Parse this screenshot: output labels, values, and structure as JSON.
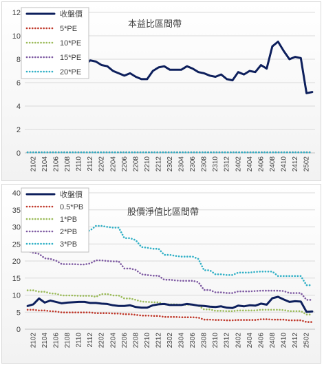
{
  "chart_data": [
    {
      "type": "line",
      "title": "本益比區間帶",
      "ylim": [
        0,
        12
      ],
      "yticks": [
        0,
        2,
        4,
        6,
        8,
        10,
        12
      ],
      "x_tick_labels": [
        "2102",
        "2104",
        "2106",
        "2108",
        "2110",
        "2112",
        "2202",
        "2204",
        "2206",
        "2208",
        "2210",
        "2212",
        "2302",
        "2304",
        "2306",
        "2308",
        "2310",
        "2312",
        "2402",
        "2404",
        "2406",
        "2408",
        "2410",
        "2412",
        "2502"
      ],
      "legend_position": "top-left",
      "x": [
        "2101",
        "2102",
        "2103",
        "2104",
        "2105",
        "2106",
        "2107",
        "2108",
        "2109",
        "2110",
        "2111",
        "2112",
        "2201",
        "2202",
        "2203",
        "2204",
        "2205",
        "2206",
        "2207",
        "2208",
        "2209",
        "2210",
        "2211",
        "2212",
        "2301",
        "2302",
        "2303",
        "2304",
        "2305",
        "2306",
        "2307",
        "2308",
        "2309",
        "2310",
        "2311",
        "2312",
        "2401",
        "2402",
        "2403",
        "2404",
        "2405",
        "2406",
        "2407",
        "2408",
        "2409",
        "2410",
        "2411",
        "2412",
        "2501",
        "2502",
        "2503"
      ],
      "series": [
        {
          "name": "收盤價",
          "color": "#0d1f5c",
          "style": "solid",
          "values": [
            6.8,
            7.3,
            8.1,
            8.3,
            8.6,
            8.7,
            7.9,
            7.9,
            7.8,
            7.5,
            7.5,
            7.9,
            7.8,
            7.5,
            7.4,
            7.0,
            6.8,
            6.6,
            6.8,
            6.5,
            6.3,
            6.3,
            7.0,
            7.3,
            7.4,
            7.1,
            7.1,
            7.1,
            7.4,
            7.2,
            6.9,
            6.8,
            6.6,
            6.5,
            6.7,
            6.3,
            6.2,
            6.9,
            6.7,
            7.0,
            6.9,
            7.5,
            7.2,
            9.1,
            9.5,
            8.7,
            8.0,
            8.2,
            8.1,
            5.1,
            5.2
          ]
        },
        {
          "name": "5*PE",
          "color": "#c0392b",
          "style": "dotted",
          "values": [
            0.05,
            0.05,
            0.05,
            0.05,
            0.05,
            0.05,
            0.05,
            0.05,
            0.05,
            0.05,
            0.05,
            0.05,
            0.05,
            0.05,
            0.05,
            0.05,
            0.05,
            0.05,
            0.05,
            0.05,
            0.05,
            0.05,
            0.05,
            0.05,
            0.05,
            0.05,
            0.05,
            0.05,
            0.05,
            0.05,
            0.05,
            0.05,
            0.05,
            0.05,
            0.05,
            0.05,
            0.05,
            0.05,
            0.05,
            0.05,
            0.05,
            0.05,
            0.05,
            0.05,
            0.05,
            0.05,
            0.05,
            0.05,
            0.05,
            0.05,
            0.05
          ]
        },
        {
          "name": "10*PE",
          "color": "#9bbb59",
          "style": "dotted",
          "values": [
            0.05,
            0.05,
            0.05,
            0.05,
            0.05,
            0.05,
            0.05,
            0.05,
            0.05,
            0.05,
            0.05,
            0.05,
            0.05,
            0.05,
            0.05,
            0.05,
            0.05,
            0.05,
            0.05,
            0.05,
            0.05,
            0.05,
            0.05,
            0.05,
            0.05,
            0.05,
            0.05,
            0.05,
            0.05,
            0.05,
            0.05,
            0.05,
            0.05,
            0.05,
            0.05,
            0.05,
            0.05,
            0.05,
            0.05,
            0.05,
            0.05,
            0.05,
            0.05,
            0.05,
            0.05,
            0.05,
            0.05,
            0.05,
            0.05,
            0.05,
            0.05
          ]
        },
        {
          "name": "15*PE",
          "color": "#7e5aa2",
          "style": "dotted",
          "values": [
            0.05,
            0.05,
            0.05,
            0.05,
            0.05,
            0.05,
            0.05,
            0.05,
            0.05,
            0.05,
            0.05,
            0.05,
            0.05,
            0.05,
            0.05,
            0.05,
            0.05,
            0.05,
            0.05,
            0.05,
            0.05,
            0.05,
            0.05,
            0.05,
            0.05,
            0.05,
            0.05,
            0.05,
            0.05,
            0.05,
            0.05,
            0.05,
            0.05,
            0.05,
            0.05,
            0.05,
            0.05,
            0.05,
            0.05,
            0.05,
            0.05,
            0.05,
            0.05,
            0.05,
            0.05,
            0.05,
            0.05,
            0.05,
            0.05,
            0.05,
            0.05
          ]
        },
        {
          "name": "20*PE",
          "color": "#31b0c6",
          "style": "dotted",
          "values": [
            0.05,
            0.05,
            0.05,
            0.05,
            0.05,
            0.05,
            0.05,
            0.05,
            0.05,
            0.05,
            0.05,
            0.05,
            0.05,
            0.05,
            0.05,
            0.05,
            0.05,
            0.05,
            0.05,
            0.05,
            0.05,
            0.05,
            0.05,
            0.05,
            0.05,
            0.05,
            0.05,
            0.05,
            0.05,
            0.05,
            0.05,
            0.05,
            0.05,
            0.05,
            0.05,
            0.05,
            0.05,
            0.05,
            0.05,
            0.05,
            0.05,
            0.05,
            0.05,
            0.05,
            0.05,
            0.05,
            0.05,
            0.05,
            0.05,
            0.05,
            0.05
          ]
        }
      ]
    },
    {
      "type": "line",
      "title": "股價淨值比區間帶",
      "ylim": [
        0,
        40
      ],
      "yticks": [
        0,
        5,
        10,
        15,
        20,
        25,
        30,
        35,
        40
      ],
      "x_tick_labels": [
        "2102",
        "2104",
        "2106",
        "2108",
        "2110",
        "2112",
        "2202",
        "2204",
        "2206",
        "2208",
        "2210",
        "2212",
        "2302",
        "2304",
        "2306",
        "2308",
        "2310",
        "2312",
        "2402",
        "2404",
        "2406",
        "2408",
        "2410",
        "2412",
        "2502"
      ],
      "legend_position": "top-left",
      "x": [
        "2101",
        "2102",
        "2103",
        "2104",
        "2105",
        "2106",
        "2107",
        "2108",
        "2109",
        "2110",
        "2111",
        "2112",
        "2201",
        "2202",
        "2203",
        "2204",
        "2205",
        "2206",
        "2207",
        "2208",
        "2209",
        "2210",
        "2211",
        "2212",
        "2301",
        "2302",
        "2303",
        "2304",
        "2305",
        "2306",
        "2307",
        "2308",
        "2309",
        "2310",
        "2311",
        "2312",
        "2401",
        "2402",
        "2403",
        "2404",
        "2405",
        "2406",
        "2407",
        "2408",
        "2409",
        "2410",
        "2411",
        "2412",
        "2501",
        "2502",
        "2503"
      ],
      "series": [
        {
          "name": "收盤價",
          "color": "#0d1f5c",
          "style": "solid",
          "values": [
            6.8,
            7.3,
            9.0,
            7.8,
            8.4,
            8.0,
            7.6,
            7.8,
            7.9,
            8.0,
            8.0,
            7.7,
            7.7,
            7.5,
            7.4,
            7.0,
            6.8,
            6.8,
            7.0,
            6.5,
            6.3,
            6.3,
            7.0,
            7.3,
            7.4,
            7.1,
            7.1,
            7.1,
            7.4,
            7.2,
            6.9,
            6.8,
            6.6,
            6.5,
            6.7,
            6.3,
            6.2,
            6.9,
            6.7,
            7.0,
            6.9,
            7.5,
            7.2,
            9.1,
            9.5,
            8.7,
            8.0,
            8.2,
            8.1,
            5.1,
            5.2
          ]
        },
        {
          "name": "0.5*PB",
          "color": "#c0392b",
          "style": "dotted",
          "values": [
            5.7,
            5.7,
            5.5,
            5.5,
            5.3,
            5.2,
            4.9,
            4.9,
            4.9,
            4.9,
            4.9,
            4.9,
            4.7,
            4.7,
            4.7,
            4.6,
            4.6,
            4.4,
            4.4,
            4.2,
            4.0,
            4.0,
            3.9,
            3.9,
            3.6,
            3.6,
            3.6,
            3.5,
            3.5,
            3.5,
            3.4,
            2.8,
            2.8,
            2.7,
            2.7,
            2.6,
            2.6,
            2.7,
            2.7,
            2.7,
            2.7,
            2.9,
            2.9,
            2.8,
            2.8,
            2.8,
            2.6,
            2.6,
            2.6,
            2.1,
            2.1
          ]
        },
        {
          "name": "1*PB",
          "color": "#9bbb59",
          "style": "dotted",
          "values": [
            11.4,
            11.4,
            11.0,
            11.0,
            10.5,
            10.4,
            9.9,
            9.9,
            9.9,
            9.8,
            9.8,
            9.8,
            9.5,
            10.3,
            10.3,
            9.9,
            9.9,
            9.0,
            9.0,
            8.6,
            8.1,
            8.0,
            7.9,
            7.9,
            7.3,
            7.3,
            7.3,
            7.2,
            7.2,
            7.2,
            6.9,
            5.8,
            5.8,
            5.4,
            5.4,
            5.3,
            5.3,
            5.5,
            5.5,
            5.5,
            5.5,
            5.7,
            5.7,
            5.7,
            5.7,
            5.6,
            5.3,
            5.3,
            5.3,
            4.3,
            4.3
          ]
        },
        {
          "name": "2*PB",
          "color": "#7e5aa2",
          "style": "dotted",
          "values": [
            23.0,
            22.4,
            22.1,
            20.8,
            20.6,
            20.1,
            19.1,
            19.1,
            19.1,
            19.0,
            19.0,
            19.3,
            20.2,
            20.2,
            20.0,
            19.9,
            19.9,
            17.8,
            17.8,
            17.4,
            16.1,
            15.9,
            15.7,
            15.7,
            14.5,
            14.5,
            14.3,
            14.2,
            14.2,
            14.2,
            13.8,
            11.5,
            11.5,
            10.8,
            10.8,
            10.6,
            10.6,
            11.1,
            11.1,
            11.1,
            11.2,
            11.3,
            11.3,
            11.3,
            11.3,
            11.2,
            10.6,
            10.6,
            10.6,
            8.6,
            8.6
          ]
        },
        {
          "name": "3*PB",
          "color": "#31b0c6",
          "style": "dotted",
          "values": [
            34.3,
            33.5,
            33.1,
            31.3,
            30.9,
            30.2,
            28.7,
            28.7,
            28.7,
            28.5,
            28.5,
            29.0,
            30.3,
            30.3,
            30.0,
            29.8,
            29.8,
            26.7,
            26.7,
            26.1,
            24.1,
            23.9,
            23.6,
            23.6,
            21.8,
            21.8,
            21.5,
            21.3,
            21.3,
            21.3,
            20.6,
            17.3,
            17.3,
            16.1,
            16.1,
            15.9,
            15.9,
            16.6,
            16.6,
            16.6,
            16.8,
            16.9,
            16.9,
            16.9,
            15.6,
            15.6,
            15.6,
            15.6,
            15.6,
            12.9,
            12.9
          ]
        }
      ]
    }
  ]
}
